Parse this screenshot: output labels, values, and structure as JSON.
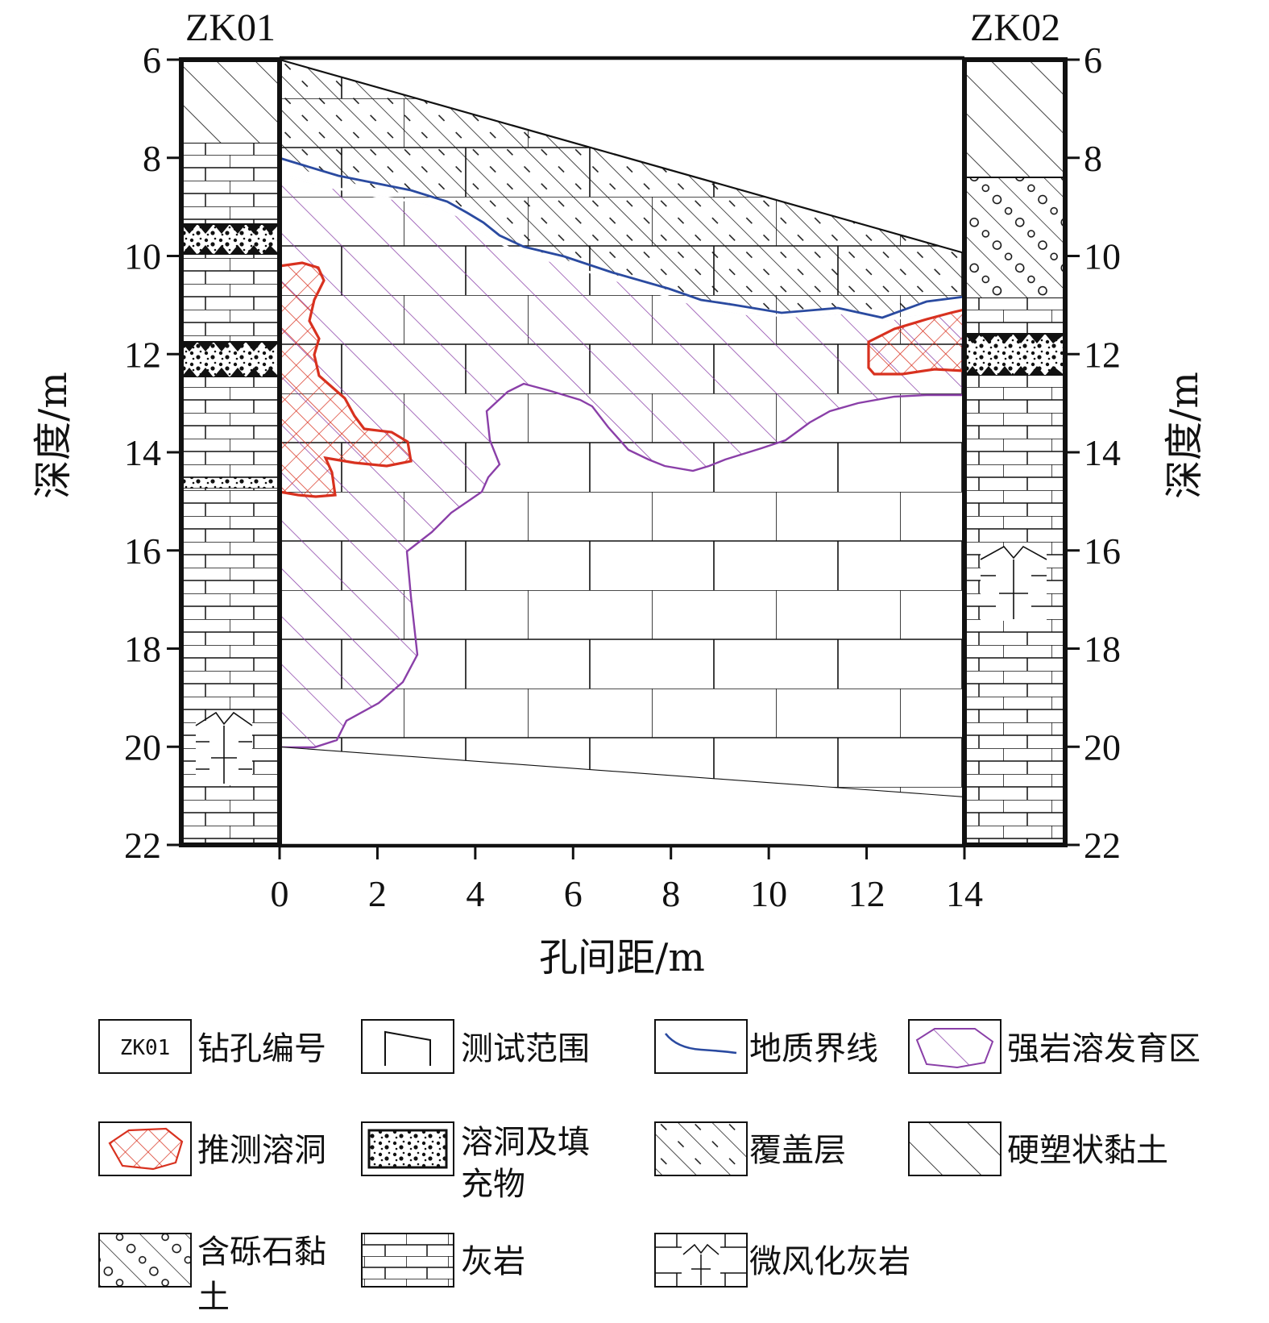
{
  "boreholes": {
    "left": "ZK01",
    "right": "ZK02"
  },
  "axes": {
    "y_label": "深度/m",
    "x_label": "孔间距/m",
    "y_ticks": [
      "6",
      "8",
      "10",
      "12",
      "14",
      "16",
      "18",
      "20",
      "22"
    ],
    "x_ticks": [
      "0",
      "2",
      "4",
      "6",
      "8",
      "10",
      "12",
      "14"
    ],
    "y_range": [
      6,
      22
    ],
    "x_range": [
      0,
      14
    ]
  },
  "legend": {
    "sample_text": "ZK01",
    "items": [
      {
        "key": "borehole_id",
        "label": "钻孔编号"
      },
      {
        "key": "test_range",
        "label": "测试范围"
      },
      {
        "key": "geo_boundary",
        "label": "地质界线"
      },
      {
        "key": "karst_zone",
        "label": "强岩溶发育区"
      },
      {
        "key": "inferred_cave",
        "label": "推测溶洞"
      },
      {
        "key": "cave_fill",
        "label_line1": "溶洞及填",
        "label_line2": "充物"
      },
      {
        "key": "overburden",
        "label": "覆盖层"
      },
      {
        "key": "hard_clay",
        "label": "硬塑状黏土"
      },
      {
        "key": "gravel_clay",
        "label_line1": "含砾石黏",
        "label_line2": "土"
      },
      {
        "key": "limestone",
        "label": "灰岩"
      },
      {
        "key": "weathered_limestone",
        "label": "微风化灰岩"
      }
    ]
  },
  "colors": {
    "boundary_line": "#2a4aa0",
    "karst_zone": "#8a3fa8",
    "cave": "#d8311f",
    "ink": "#111111"
  }
}
